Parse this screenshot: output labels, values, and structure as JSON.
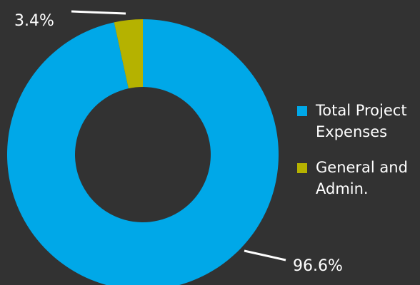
{
  "chart_data": {
    "type": "pie",
    "title": "",
    "donut": true,
    "slices": [
      {
        "label": "Total Project Expenses",
        "value": 96.6,
        "display": "96.6%",
        "color": "#00a8e8"
      },
      {
        "label": "General and Admin.",
        "value": 3.4,
        "display": "3.4%",
        "color": "#b5b200"
      }
    ],
    "legend_position": "right",
    "background": "#323232",
    "text_color": "#ffffff"
  }
}
